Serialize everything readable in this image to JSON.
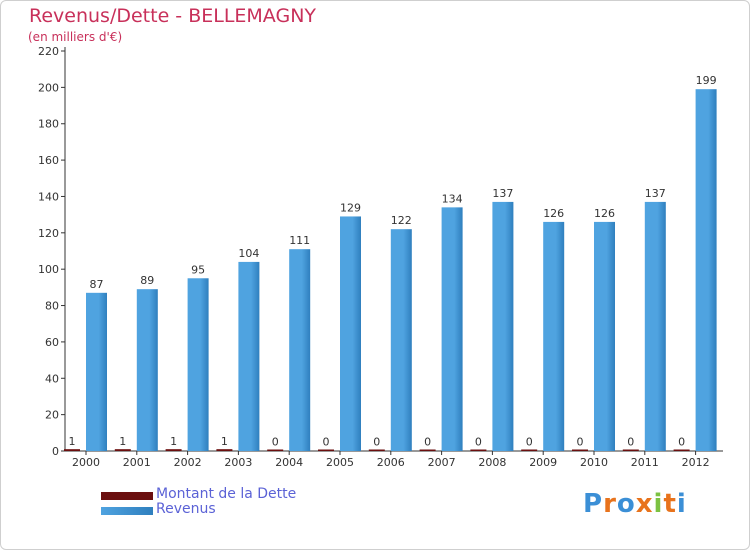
{
  "title": "Revenus/Dette - BELLEMAGNY",
  "subtitle": "(en milliers d'€)",
  "legend": {
    "debt_label": "Montant de la Dette",
    "revenue_label": "Revenus"
  },
  "logo": {
    "letters": [
      "P",
      "r",
      "o",
      "x",
      "i",
      "t",
      "i"
    ]
  },
  "colors": {
    "revenue": "#4fa3e0",
    "revenue_dark": "#2f7fbe",
    "debt": "#6b0f0f",
    "title": "#c8305a",
    "legend_text": "#5b62d6",
    "logo": [
      "#3b8fd6",
      "#e8731c",
      "#3b8fd6",
      "#e8731c",
      "#7cc242",
      "#e8731c",
      "#3b8fd6"
    ]
  },
  "chart_data": {
    "type": "bar",
    "title": "Revenus/Dette - BELLEMAGNY",
    "ylabel": "(en milliers d'€)",
    "categories": [
      "2000",
      "2001",
      "2002",
      "2003",
      "2004",
      "2005",
      "2006",
      "2007",
      "2008",
      "2009",
      "2010",
      "2011",
      "2012"
    ],
    "series": [
      {
        "name": "Montant de la Dette",
        "values": [
          1,
          1,
          1,
          1,
          0,
          0,
          0,
          0,
          0,
          0,
          0,
          0,
          0
        ]
      },
      {
        "name": "Revenus",
        "values": [
          87,
          89,
          95,
          104,
          111,
          129,
          122,
          134,
          137,
          126,
          126,
          137,
          199
        ]
      }
    ],
    "ylim": [
      0,
      220
    ],
    "yticks": [
      0,
      20,
      40,
      60,
      80,
      100,
      120,
      140,
      160,
      180,
      200,
      220
    ],
    "grid": false,
    "legend_position": "bottom-left"
  }
}
